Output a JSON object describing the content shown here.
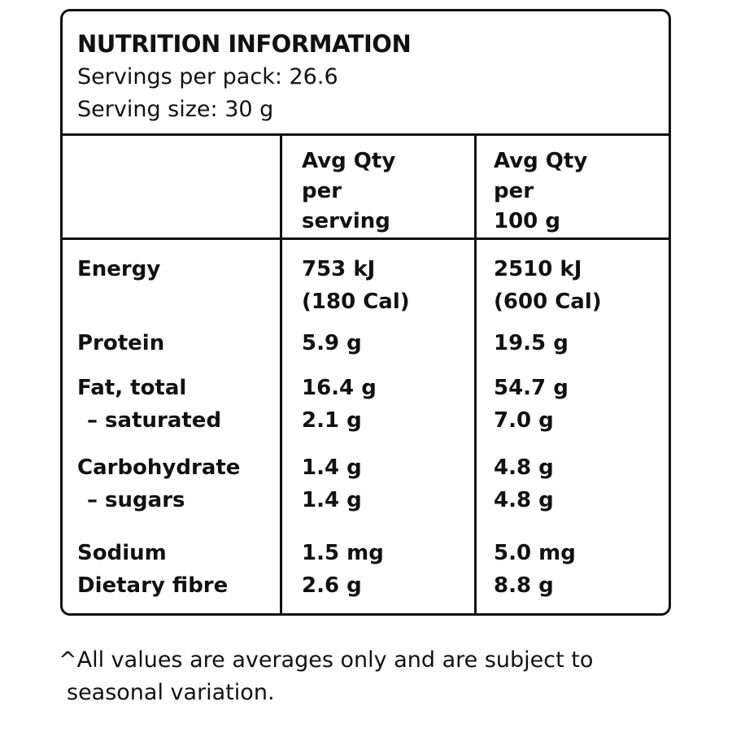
{
  "header": {
    "title": "NUTRITION INFORMATION",
    "servings_per_pack": "Servings per pack: 26.6",
    "serving_size": "Serving size: 30 g"
  },
  "columns": {
    "per_serving": "Avg Qty\nper\nserving",
    "per_100g": "Avg Qty\nper\n100 g"
  },
  "rows": [
    {
      "name": "Energy",
      "per_serving": [
        "753 kJ",
        "(180 Cal)"
      ],
      "per_100g": [
        "2510 kJ",
        "(600 Cal)"
      ]
    },
    {
      "name": "Protein",
      "per_serving": [
        "5.9 g"
      ],
      "per_100g": [
        "19.5 g"
      ]
    },
    {
      "name": "Fat, total",
      "sub": "– saturated",
      "per_serving": [
        "16.4 g",
        "2.1 g"
      ],
      "per_100g": [
        "54.7 g",
        "7.0 g"
      ]
    },
    {
      "name": "Carbohydrate",
      "sub": "– sugars",
      "per_serving": [
        "1.4 g",
        "1.4 g"
      ],
      "per_100g": [
        "4.8 g",
        "4.8 g"
      ]
    },
    {
      "name": "Sodium",
      "sub": "Dietary fibre",
      "per_serving": [
        "1.5 mg",
        "2.6 g"
      ],
      "per_100g": [
        "5.0 mg",
        "8.8 g"
      ]
    }
  ],
  "footnote": {
    "line1": "^All values are averages only and are subject to",
    "line2": "seasonal variation."
  }
}
